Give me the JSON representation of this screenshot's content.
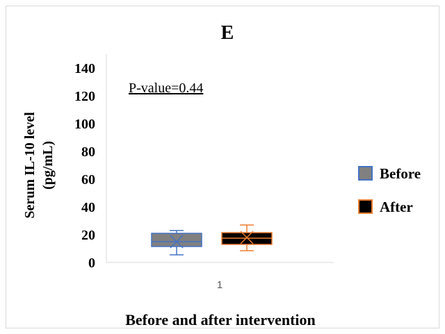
{
  "chart_data": {
    "type": "box",
    "title": "E",
    "ylabel_line1": "Serum IL-10 level",
    "ylabel_line2": "(pg/mL)",
    "xlabel": "Before and after intervention",
    "categories": [
      "1"
    ],
    "ylim": [
      0,
      140
    ],
    "yticks": [
      0,
      20,
      40,
      60,
      80,
      100,
      120,
      140
    ],
    "annotation": "P-value=0.44",
    "legend_position": "right",
    "series": [
      {
        "name": "Before",
        "fill": "#808080",
        "edge": "#4472c4",
        "min": 5.5,
        "q1": 11.5,
        "median": 15,
        "q3": 21,
        "max": 23,
        "mean": 15
      },
      {
        "name": "After",
        "fill": "#000000",
        "edge": "#ed7d31",
        "min": 8.5,
        "q1": 13,
        "median": 17.5,
        "q3": 21.5,
        "max": 27,
        "mean": 18
      }
    ]
  }
}
